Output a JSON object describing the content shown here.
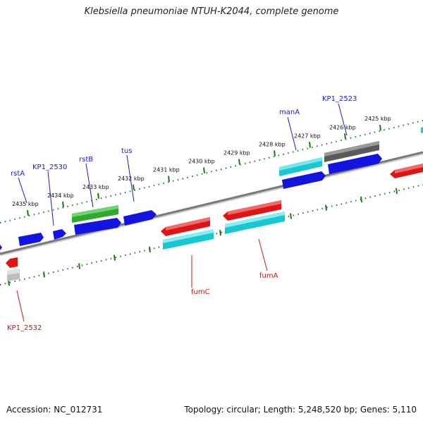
{
  "title": "Klebsiella pneumoniae NTUH-K2044, complete genome",
  "footer": {
    "accession": "Accession: NC_012731",
    "topology": "Topology: circular; Length: 5,248,520 bp; Genes: 5,110"
  },
  "colors": {
    "backbone": "#8a8a8a",
    "ticks": "#1a7a1a",
    "forward_label": "#1a1acc",
    "reverse_label": "#cc1111",
    "blue_feature": "#1414e0",
    "red_feature": "#e01414",
    "cyan_feature": "#18c8d0",
    "green_feature": "#2ea82e",
    "gray_feature": "#6b6b6b",
    "lightgray_feature": "#bdbdbd"
  },
  "scale_ticks": [
    {
      "label": "2435 kbp"
    },
    {
      "label": "2434 kbp"
    },
    {
      "label": "2433 kbp"
    },
    {
      "label": "2432 kbp"
    },
    {
      "label": "2431 kbp"
    },
    {
      "label": "2430 kbp"
    },
    {
      "label": "2429 kbp"
    },
    {
      "label": "2428 kbp"
    },
    {
      "label": "2427 kbp"
    },
    {
      "label": "2426 kbp"
    },
    {
      "label": "2425 kbp"
    }
  ],
  "gene_labels": {
    "rstA": "rstA",
    "kp1_2530": "KP1_2530",
    "rstB": "rstB",
    "tus": "tus",
    "manA": "manA",
    "kp1_2523": "KP1_2523",
    "fumC": "fumC",
    "fumA": "fumA",
    "kp1_2532": "KP1_2532"
  }
}
